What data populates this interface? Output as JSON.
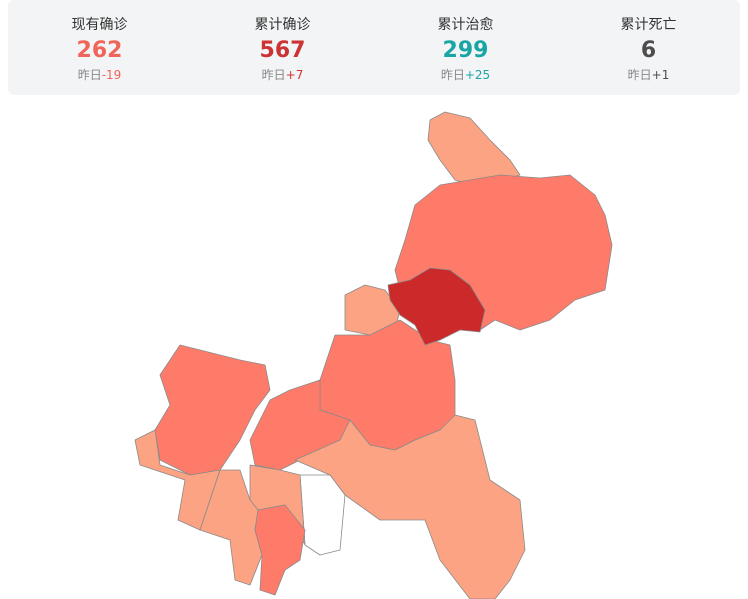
{
  "stats": [
    {
      "label": "现有确诊",
      "value": "262",
      "prefix": "昨日",
      "delta": "-19"
    },
    {
      "label": "累计确诊",
      "value": "567",
      "prefix": "昨日",
      "delta": "+7"
    },
    {
      "label": "累计治愈",
      "value": "299",
      "prefix": "昨日",
      "delta": "+25"
    },
    {
      "label": "累计死亡",
      "value": "6",
      "prefix": "昨日",
      "delta": "+1"
    }
  ]
}
